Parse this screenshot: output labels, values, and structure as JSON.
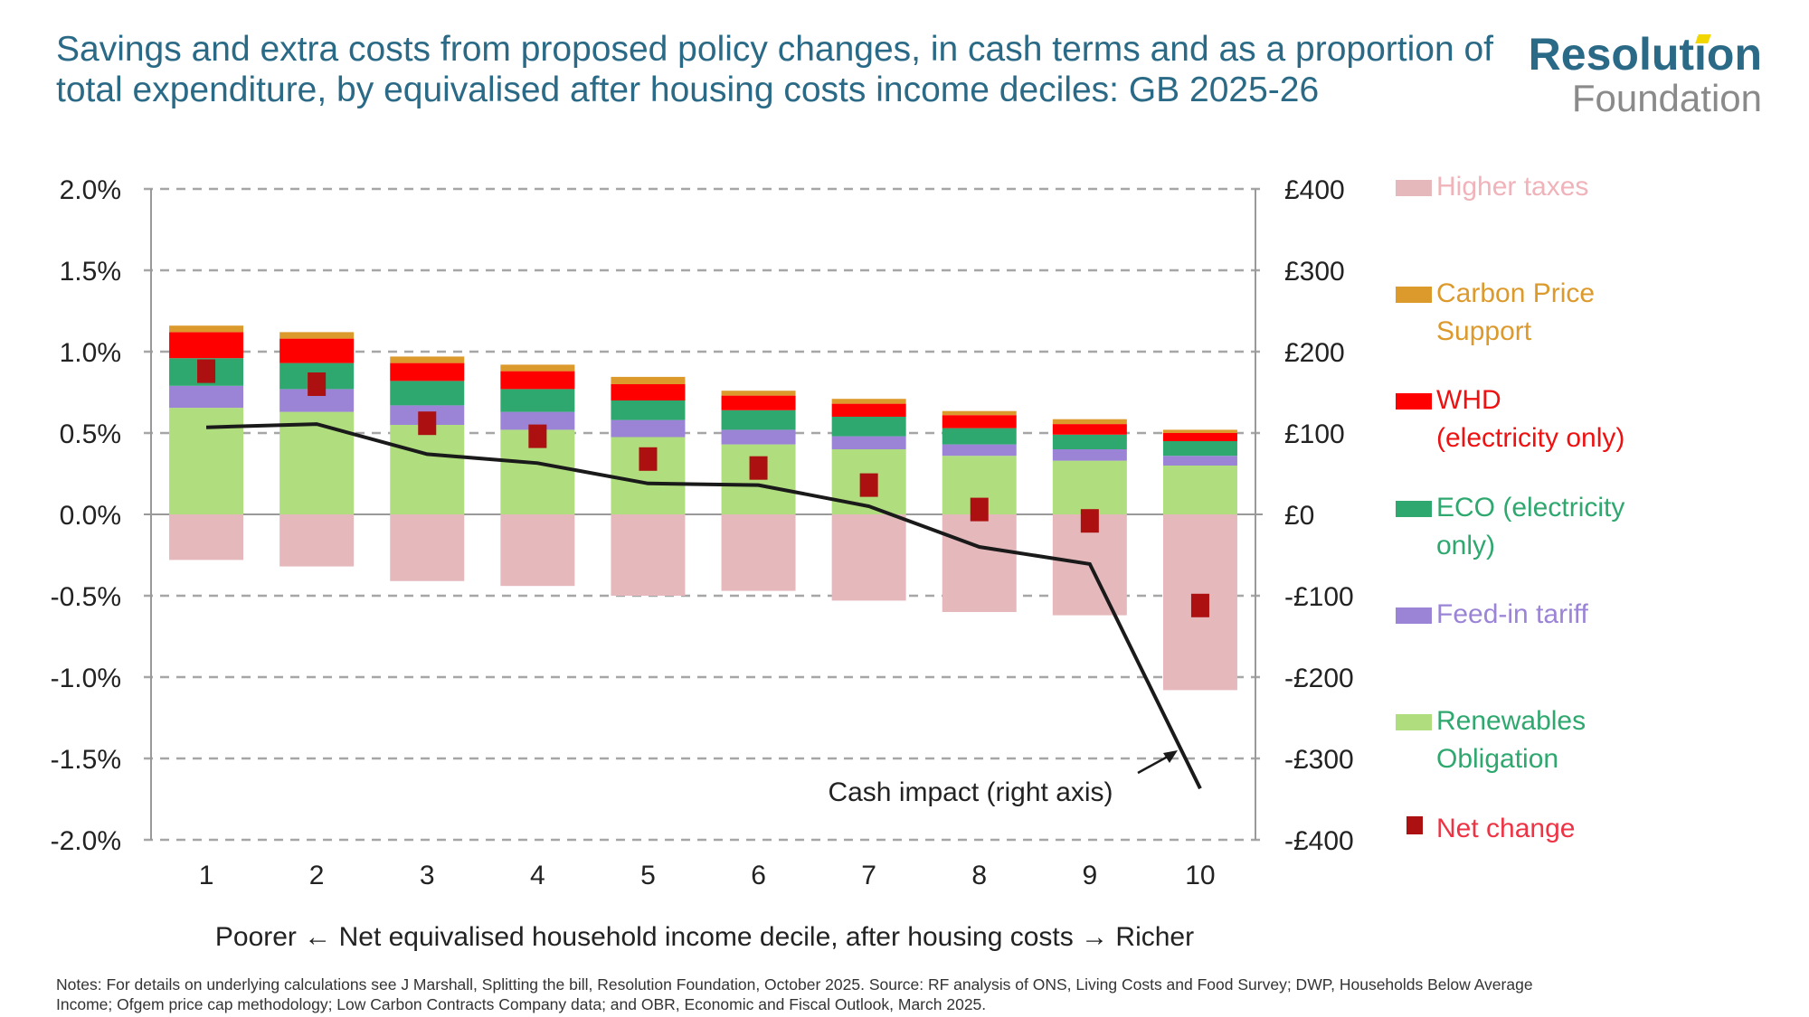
{
  "title": "Savings and extra costs from proposed policy changes, in cash terms and as a proportion of total expenditure, by equivalised after housing costs income deciles: GB 2025-26",
  "logo": {
    "line1": "Resolution",
    "line2": "Foundation"
  },
  "notes": "Notes: For details on underlying calculations see J Marshall, Splitting the bill, Resolution Foundation, October 2025. Source: RF analysis of ONS, Living Costs and Food Survey; DWP, Households Below Average Income; Ofgem price cap methodology; Low Carbon Contracts Company data; and OBR, Economic and Fiscal Outlook, March 2025.",
  "chart_data": {
    "type": "bar",
    "stacked": true,
    "xlabel": "Poorer ← Net equivalised household income decile, after housing costs → Richer",
    "categories": [
      "1",
      "2",
      "3",
      "4",
      "5",
      "6",
      "7",
      "8",
      "9",
      "10"
    ],
    "ylim": [
      -2.0,
      2.0
    ],
    "yticks": [
      "2.0%",
      "1.5%",
      "1.0%",
      "0.5%",
      "0.0%",
      "-0.5%",
      "-1.0%",
      "-1.5%",
      "-2.0%"
    ],
    "y2lim": [
      -400,
      400
    ],
    "y2ticks": [
      "£400",
      "£300",
      "£200",
      "£100",
      "£0",
      "-£100",
      "-£200",
      "-£300",
      "-£400"
    ],
    "grid": "horizontal dashed",
    "legend_position": "right",
    "series": [
      {
        "name": "Higher taxes",
        "color": "#e5b9bc",
        "values": [
          -0.28,
          -0.32,
          -0.41,
          -0.44,
          -0.5,
          -0.47,
          -0.53,
          -0.6,
          -0.62,
          -1.08
        ]
      },
      {
        "name": "Renewables Obligation",
        "color": "#b0dd7e",
        "values": [
          0.655,
          0.63,
          0.55,
          0.52,
          0.475,
          0.43,
          0.4,
          0.36,
          0.33,
          0.3
        ]
      },
      {
        "name": "Feed-in tariff",
        "color": "#9b84d6",
        "values": [
          0.135,
          0.14,
          0.12,
          0.11,
          0.105,
          0.09,
          0.08,
          0.07,
          0.07,
          0.06
        ]
      },
      {
        "name": "ECO (electricity only)",
        "color": "#2ea86e",
        "values": [
          0.17,
          0.16,
          0.15,
          0.14,
          0.12,
          0.12,
          0.12,
          0.1,
          0.09,
          0.09
        ]
      },
      {
        "name": "WHD (electricity only)",
        "color": "#ff0000",
        "values": [
          0.16,
          0.15,
          0.11,
          0.11,
          0.1,
          0.09,
          0.08,
          0.08,
          0.065,
          0.05
        ]
      },
      {
        "name": "Carbon Price Support",
        "color": "#dd9a2c",
        "values": [
          0.04,
          0.04,
          0.04,
          0.04,
          0.045,
          0.03,
          0.03,
          0.025,
          0.03,
          0.02
        ]
      }
    ],
    "net_change": {
      "name": "Net change",
      "color": "#ad1010",
      "values": [
        0.88,
        0.8,
        0.56,
        0.48,
        0.34,
        0.285,
        0.18,
        0.03,
        -0.04,
        -0.56
      ]
    },
    "cash_impact": {
      "label": "Cash impact (right axis)",
      "axis": "right",
      "color": "#1a1a1a",
      "values": [
        107,
        111,
        74,
        63,
        38,
        36,
        10,
        -40,
        -61,
        -337
      ]
    },
    "legend": [
      {
        "label": [
          "Higher taxes"
        ],
        "color": "#e5b9bc",
        "text_color": "#f0b3ba"
      },
      {
        "label": [
          "Carbon Price",
          "Support"
        ],
        "color": "#dd9a2c",
        "text_color": "#dd9a2c"
      },
      {
        "label": [
          "WHD",
          "(electricity only)"
        ],
        "color": "#ff0000",
        "text_color": "#ee1111"
      },
      {
        "label": [
          "ECO (electricity",
          "only)"
        ],
        "color": "#2ea86e",
        "text_color": "#2ea86e"
      },
      {
        "label": [
          "Feed-in tariff"
        ],
        "color": "#9b84d6",
        "text_color": "#9b84d6"
      },
      {
        "label": [
          "Renewables",
          "Obligation"
        ],
        "color": "#b0dd7e",
        "text_color": "#2ea86e"
      },
      {
        "label": [
          "Net change"
        ],
        "color": "#ad1010",
        "text_color": "#ee3344",
        "marker": "square"
      }
    ]
  }
}
